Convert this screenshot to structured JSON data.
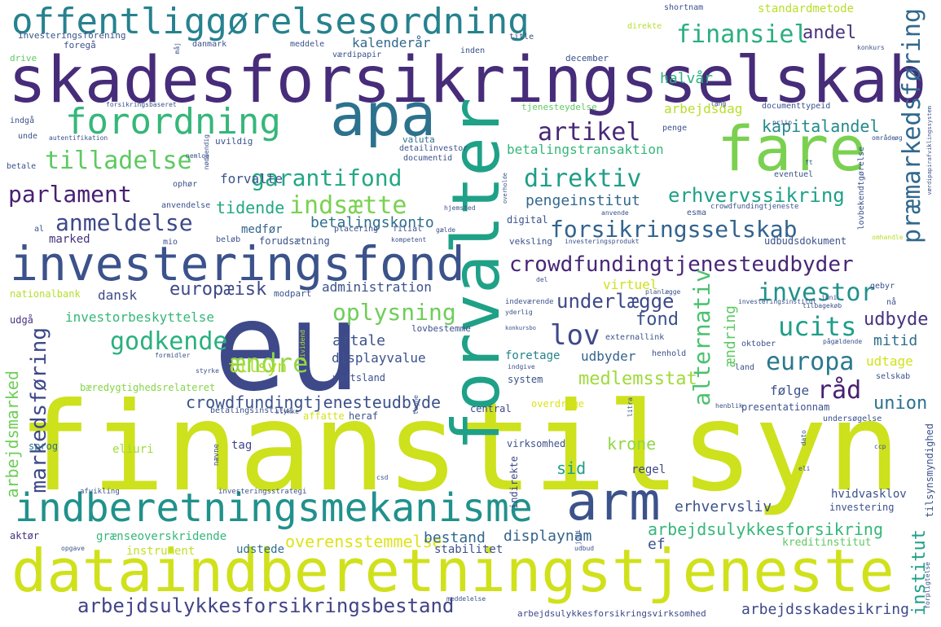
{
  "cloud": {
    "words": [
      {
        "text": "finanstilsyn",
        "color": "#cde11d"
      },
      {
        "text": "skadesforsikringsselskab",
        "color": "#472c7a"
      },
      {
        "text": "eu",
        "color": "#3e4989"
      },
      {
        "text": "dataindberetningstjeneste",
        "color": "#d0e11c"
      },
      {
        "text": "forvalter",
        "color": "#1fa187"
      },
      {
        "text": "offentliggørelsesordning",
        "color": "#26828e"
      },
      {
        "text": "investeringsfond",
        "color": "#3b528b"
      },
      {
        "text": "indberetningsmekanisme",
        "color": "#21918c"
      },
      {
        "text": "fare",
        "color": "#7ad151"
      },
      {
        "text": "apa",
        "color": "#2c728e"
      },
      {
        "text": "arm",
        "color": "#3b528b"
      },
      {
        "text": "forordning",
        "color": "#35b779"
      },
      {
        "text": "arbejdsulykkesforsikringsbestand",
        "color": "#414487"
      },
      {
        "text": "crowdfundingtjenesteudbyder",
        "color": "#482677"
      },
      {
        "text": "alternativ",
        "color": "#4ac16d"
      },
      {
        "text": "forsikringsselskab",
        "color": "#33638d"
      },
      {
        "text": "markedsføring",
        "color": "#3e4989"
      },
      {
        "text": "finansiel",
        "color": "#29af7f"
      },
      {
        "text": "tilladelse",
        "color": "#5ec962"
      },
      {
        "text": "parlament",
        "color": "#481f70"
      },
      {
        "text": "anmeldelse",
        "color": "#3e4989"
      },
      {
        "text": "garantifond",
        "color": "#22a884"
      },
      {
        "text": "direktiv",
        "color": "#1f9e89"
      },
      {
        "text": "investor",
        "color": "#21918c"
      },
      {
        "text": "ucits",
        "color": "#1f9e89"
      },
      {
        "text": "europa",
        "color": "#2a788e"
      },
      {
        "text": "godkende",
        "color": "#2ab07f"
      },
      {
        "text": "artikel",
        "color": "#482878"
      },
      {
        "text": "lov",
        "color": "#3e4989"
      },
      {
        "text": "ændre",
        "color": "#8fd744"
      },
      {
        "text": "indsætte",
        "color": "#7ad151"
      },
      {
        "text": "underlægge",
        "color": "#3e4989"
      },
      {
        "text": "erhvervssikring",
        "color": "#1fa188"
      },
      {
        "text": "råd",
        "color": "#481f70"
      },
      {
        "text": "crowdfundingtjenesteudbyde",
        "color": "#3b528b"
      },
      {
        "text": "præmarkedsføring",
        "color": "#31688e"
      },
      {
        "text": "oplysning",
        "color": "#6ece58"
      },
      {
        "text": "arbejdsulykkesforsikring",
        "color": "#35b779"
      },
      {
        "text": "kapitalandel",
        "color": "#238a8d"
      },
      {
        "text": "arbejdsmarked",
        "color": "#6ece58"
      },
      {
        "text": "institut",
        "color": "#1fa187"
      },
      {
        "text": "tilsyn",
        "color": "#b5de2b"
      },
      {
        "text": "fond",
        "color": "#3b528b"
      },
      {
        "text": "udbyde",
        "color": "#46327e"
      },
      {
        "text": "union",
        "color": "#2c728e"
      },
      {
        "text": "europæisk",
        "color": "#3e4989"
      },
      {
        "text": "tidende",
        "color": "#22a884"
      },
      {
        "text": "medlemsstat",
        "color": "#9fda3a"
      },
      {
        "text": "krone",
        "color": "#8fd744"
      },
      {
        "text": "andel",
        "color": "#46327e"
      },
      {
        "text": "halvår",
        "color": "#2ab07f"
      },
      {
        "text": "arbejdsdag",
        "color": "#b8de29"
      },
      {
        "text": "betalingstransaktion",
        "color": "#35b779"
      },
      {
        "text": "pengeinstitut",
        "color": "#31688e"
      },
      {
        "text": "kalenderår",
        "color": "#31688e"
      },
      {
        "text": "betalingskonto",
        "color": "#2e6f8e"
      },
      {
        "text": "overensstemmelse",
        "color": "#dde318"
      },
      {
        "text": "bestand",
        "color": "#31688e"
      },
      {
        "text": "displaynam",
        "color": "#33638d"
      },
      {
        "text": "arbejdsskadesikring",
        "color": "#3e4989"
      },
      {
        "text": "arbejdsulykkesforsikringsvirksomhed",
        "color": "#3e4989"
      },
      {
        "text": "grænseoverskridende",
        "color": "#35b779"
      },
      {
        "text": "forvalte",
        "color": "#3b528b"
      },
      {
        "text": "administration",
        "color": "#3b528b"
      },
      {
        "text": "investorbeskyttelse",
        "color": "#35b779"
      },
      {
        "text": "aftale",
        "color": "#3b528b"
      },
      {
        "text": "displayvalue",
        "color": "#3b528b"
      },
      {
        "text": "foretage",
        "color": "#26828e"
      },
      {
        "text": "udbyder",
        "color": "#33638d"
      },
      {
        "text": "mitid",
        "color": "#2e6f8e"
      },
      {
        "text": "ændring",
        "color": "#5ec962"
      },
      {
        "text": "udtage",
        "color": "#d2e21b"
      },
      {
        "text": "følge",
        "color": "#3b528b"
      },
      {
        "text": "sid",
        "color": "#1f9e89"
      },
      {
        "text": "regel",
        "color": "#3e4989"
      },
      {
        "text": "ef",
        "color": "#3b528b"
      },
      {
        "text": "virtuel",
        "color": "#d0e11c"
      },
      {
        "text": "dansk",
        "color": "#3e4989"
      },
      {
        "text": "medfør",
        "color": "#33638d"
      },
      {
        "text": "marked",
        "color": "#46327e"
      },
      {
        "text": "standardmetode",
        "color": "#b8de29"
      },
      {
        "text": "udbudsdokument",
        "color": "#3b528b"
      },
      {
        "text": "hvidvasklov",
        "color": "#3b528b"
      },
      {
        "text": "kreditinstitut",
        "color": "#5ec962"
      },
      {
        "text": "investering",
        "color": "#3b528b"
      },
      {
        "text": "eliuri",
        "color": "#a0da39"
      },
      {
        "text": "sprog",
        "color": "#2e6f8e"
      },
      {
        "text": "tag",
        "color": "#414487"
      },
      {
        "text": "stabilitet",
        "color": "#3b528b"
      },
      {
        "text": "udstede",
        "color": "#2e6f8e"
      },
      {
        "text": "instrument",
        "color": "#c0df25"
      },
      {
        "text": "aktør",
        "color": "#46327e"
      },
      {
        "text": "erhvervsliv",
        "color": "#3b528b"
      },
      {
        "text": "virksomhed",
        "color": "#3b528b"
      },
      {
        "text": "indirekte",
        "color": "#3e4989"
      },
      {
        "text": "heraf",
        "color": "#3b528b"
      },
      {
        "text": "central",
        "color": "#3e4989"
      },
      {
        "text": "affatte",
        "color": "#d2e21b"
      },
      {
        "text": "overdrage",
        "color": "#dde318"
      },
      {
        "text": "system",
        "color": "#3b528b"
      },
      {
        "text": "værtsland",
        "color": "#3b528b"
      },
      {
        "text": "bæredygtighedsrelateret",
        "color": "#86d549"
      },
      {
        "text": "lovbestemme",
        "color": "#3b528b"
      },
      {
        "text": "betalingsinstitut",
        "color": "#3b528b"
      },
      {
        "text": "nationalbank",
        "color": "#b5de2b"
      },
      {
        "text": "udgå",
        "color": "#46327e"
      },
      {
        "text": "modpart",
        "color": "#3b528b"
      },
      {
        "text": "forudsætning",
        "color": "#3b528b"
      },
      {
        "text": "beløb",
        "color": "#3b528b"
      },
      {
        "text": "placering",
        "color": "#3b528b"
      },
      {
        "text": "filial",
        "color": "#3b528b"
      },
      {
        "text": "digital",
        "color": "#3b528b"
      },
      {
        "text": "veksling",
        "color": "#3b528b"
      },
      {
        "text": "investeringsprodukt",
        "color": "#3b528b"
      },
      {
        "text": "esma",
        "color": "#3b528b"
      },
      {
        "text": "crowdfundingtjeneste",
        "color": "#3b528b"
      },
      {
        "text": "eventuel",
        "color": "#3b528b"
      },
      {
        "text": "documentid",
        "color": "#3b528b"
      },
      {
        "text": "detailinvestor",
        "color": "#3b528b"
      },
      {
        "text": "valuta",
        "color": "#2e6f8e"
      },
      {
        "text": "penge",
        "color": "#3b528b"
      },
      {
        "text": "uvildig",
        "color": "#3b528b"
      },
      {
        "text": "documenttypeid",
        "color": "#3b528b"
      },
      {
        "text": "tjenesteydelse",
        "color": "#5ec962"
      },
      {
        "text": "december",
        "color": "#3b528b"
      },
      {
        "text": "værdipapir",
        "color": "#3b528b"
      },
      {
        "text": "meddele",
        "color": "#3b528b"
      },
      {
        "text": "danmark",
        "color": "#3b528b"
      },
      {
        "text": "foregå",
        "color": "#3b528b"
      },
      {
        "text": "drive",
        "color": "#5ec962"
      },
      {
        "text": "investeringsforening",
        "color": "#3b528b"
      },
      {
        "text": "title",
        "color": "#3b528b"
      },
      {
        "text": "inden",
        "color": "#3b528b"
      },
      {
        "text": "direkte",
        "color": "#b5de2b"
      },
      {
        "text": "shortnam",
        "color": "#3b528b"
      },
      {
        "text": "forsikringsbaseret",
        "color": "#3b528b"
      },
      {
        "text": "indgå",
        "color": "#3b528b"
      },
      {
        "text": "unde",
        "color": "#3b528b"
      },
      {
        "text": "autentifikation",
        "color": "#3b528b"
      },
      {
        "text": "betale",
        "color": "#3b528b"
      },
      {
        "text": "nemlog",
        "color": "#3b528b"
      },
      {
        "text": "anvendelse",
        "color": "#3b528b"
      },
      {
        "text": "al",
        "color": "#3b528b"
      },
      {
        "text": "mio",
        "color": "#3b528b"
      },
      {
        "text": "ophør",
        "color": "#3b528b"
      },
      {
        "text": "hjemsted",
        "color": "#3b528b"
      },
      {
        "text": "gælde",
        "color": "#3b528b"
      },
      {
        "text": "kompetent",
        "color": "#3b528b"
      },
      {
        "text": "del",
        "color": "#3b528b"
      },
      {
        "text": "yderlig",
        "color": "#3b528b"
      },
      {
        "text": "konkursbo",
        "color": "#3b528b"
      },
      {
        "text": "dividend",
        "color": "#b5de2b"
      },
      {
        "text": "formidler",
        "color": "#3b528b"
      },
      {
        "text": "styrke",
        "color": "#3b528b"
      },
      {
        "text": "indgive",
        "color": "#3b528b"
      },
      {
        "text": "indeværende",
        "color": "#3b528b"
      },
      {
        "text": "planlægge",
        "color": "#3b528b"
      },
      {
        "text": "externallink",
        "color": "#3b528b"
      },
      {
        "text": "henhold",
        "color": "#3b528b"
      },
      {
        "text": "oktober",
        "color": "#3b528b"
      },
      {
        "text": "land",
        "color": "#3b528b"
      },
      {
        "text": "investeringsinstitut",
        "color": "#3b528b"
      },
      {
        "text": "tilbagekøb",
        "color": "#3b528b"
      },
      {
        "text": "juni",
        "color": "#3b528b"
      },
      {
        "text": "nå",
        "color": "#3b528b"
      },
      {
        "text": "gebyr",
        "color": "#3b528b"
      },
      {
        "text": "pågældende",
        "color": "#3b528b"
      },
      {
        "text": "selskab",
        "color": "#3b528b"
      },
      {
        "text": "henblik",
        "color": "#3b528b"
      },
      {
        "text": "undersøgelse",
        "color": "#3b528b"
      },
      {
        "text": "presentationnam",
        "color": "#3b528b"
      },
      {
        "text": "litra",
        "color": "#3b528b"
      },
      {
        "text": "tilsynsmyndighed",
        "color": "#3b528b"
      },
      {
        "text": "ccp",
        "color": "#3b528b"
      },
      {
        "text": "eli",
        "color": "#3b528b"
      },
      {
        "text": "forpligtelse",
        "color": "#3b528b"
      },
      {
        "text": "meddelelse",
        "color": "#3b528b"
      },
      {
        "text": "udbud",
        "color": "#3b528b"
      },
      {
        "text": "opgave",
        "color": "#3b528b"
      },
      {
        "text": "afvikling",
        "color": "#3b528b"
      },
      {
        "text": "investeringsstrategi",
        "color": "#3b528b"
      },
      {
        "text": "csd",
        "color": "#3b528b"
      },
      {
        "text": "juli",
        "color": "#3b528b"
      },
      {
        "text": "tegne",
        "color": "#3b528b"
      },
      {
        "text": "stykke",
        "color": "#3b528b"
      },
      {
        "text": "nævne",
        "color": "#3b528b"
      },
      {
        "text": "nødvendig",
        "color": "#3b528b"
      },
      {
        "text": "priip",
        "color": "#3b528b"
      },
      {
        "text": "område",
        "color": "#3b528b"
      },
      {
        "text": "øg",
        "color": "#3b528b"
      },
      {
        "text": "konkurs",
        "color": "#3b528b"
      },
      {
        "text": "lang",
        "color": "#3b528b"
      },
      {
        "text": "lovbekendtgørelse",
        "color": "#3b528b"
      },
      {
        "text": "ft",
        "color": "#3b528b"
      },
      {
        "text": "omhandle",
        "color": "#3b528b"
      },
      {
        "text": "værdipapirafviklingssystem",
        "color": "#3b528b"
      },
      {
        "text": "måj",
        "color": "#3b528b"
      },
      {
        "text": "overholde",
        "color": "#3b528b"
      },
      {
        "text": "anvende",
        "color": "#3b528b"
      },
      {
        "text": "dato",
        "color": "#3b528b"
      }
    ]
  }
}
